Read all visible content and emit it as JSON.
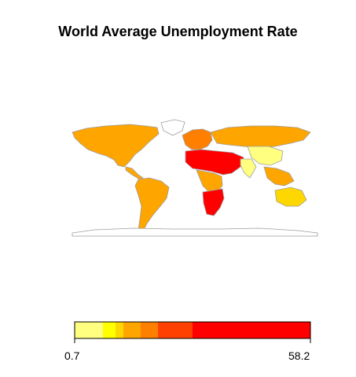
{
  "title": "World Average Unemployment Rate",
  "legend": {
    "min_label": "0.7",
    "max_label": "58.2",
    "bins": [
      {
        "color": "#FFFF80"
      },
      {
        "color": "#FFFF00"
      },
      {
        "color": "#FFD700"
      },
      {
        "color": "#FFA500"
      },
      {
        "color": "#FF8000"
      },
      {
        "color": "#FF4000"
      },
      {
        "color": "#FF0000"
      }
    ]
  },
  "map": {
    "land_stroke": "#9E9E9E",
    "regions": [
      {
        "name": "north-america",
        "color": "#FFA500"
      },
      {
        "name": "greenland",
        "color": "#FFFFFF"
      },
      {
        "name": "central-america",
        "color": "#FFA500"
      },
      {
        "name": "south-america",
        "color": "#FFA500"
      },
      {
        "name": "europe",
        "color": "#FF8000"
      },
      {
        "name": "russia",
        "color": "#FFA500"
      },
      {
        "name": "north-africa-middle-east",
        "color": "#FF0000"
      },
      {
        "name": "central-africa",
        "color": "#FFA500"
      },
      {
        "name": "southern-africa",
        "color": "#FF0000"
      },
      {
        "name": "india",
        "color": "#FFFF80"
      },
      {
        "name": "china",
        "color": "#FFFF80"
      },
      {
        "name": "southeast-asia",
        "color": "#FFA500"
      },
      {
        "name": "australia",
        "color": "#FFD700"
      },
      {
        "name": "antarctica",
        "color": "#FFFFFF"
      }
    ]
  }
}
